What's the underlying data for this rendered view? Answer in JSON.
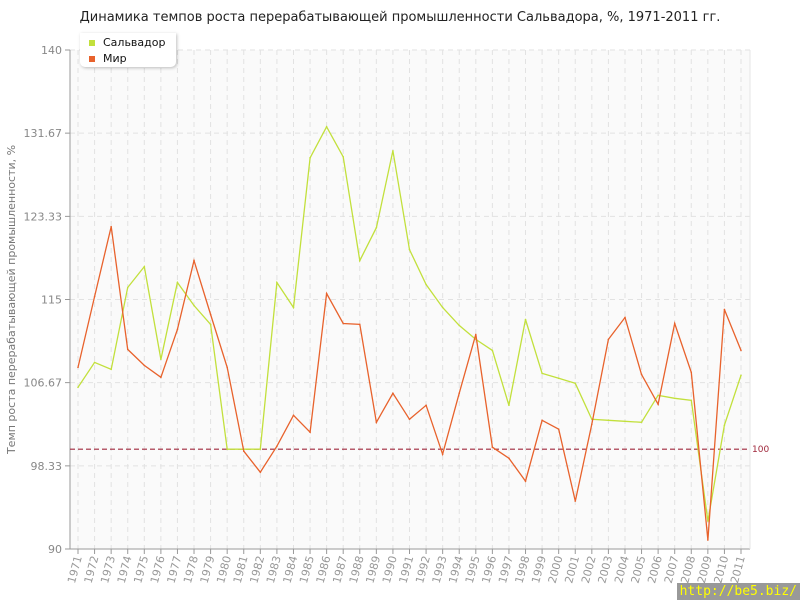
{
  "chart_data": {
    "type": "line",
    "title": "Динамика темпов роста перерабатывающей промышленности Сальвадора, %, 1971-2011 гг.",
    "xlabel": "",
    "ylabel": "Темп роста перерабатывающей промышленности, %",
    "ylim": [
      90,
      140
    ],
    "yticks": [
      "90",
      "98.33",
      "106.67",
      "115",
      "123.33",
      "131.67",
      "140"
    ],
    "grid": true,
    "legend_position": "top-left",
    "reference_line": {
      "value": 100,
      "label": "100",
      "color": "#a0283c"
    },
    "x": [
      1971,
      1972,
      1973,
      1974,
      1975,
      1976,
      1977,
      1978,
      1979,
      1980,
      1981,
      1982,
      1983,
      1984,
      1985,
      1986,
      1987,
      1988,
      1989,
      1990,
      1991,
      1992,
      1993,
      1994,
      1995,
      1996,
      1997,
      1998,
      1999,
      2000,
      2001,
      2002,
      2003,
      2004,
      2005,
      2006,
      2007,
      2008,
      2009,
      2010,
      2011
    ],
    "series": [
      {
        "name": "Сальвадор",
        "color": "#c2e03c",
        "values": [
          106.2,
          108.7,
          108.0,
          116.2,
          118.3,
          109.0,
          116.7,
          114.4,
          112.5,
          100,
          100,
          100,
          116.7,
          114.2,
          129.2,
          132.3,
          129.3,
          118.9,
          122.2,
          129.9,
          120.0,
          116.5,
          114.2,
          112.4,
          111.0,
          109.9,
          104.4,
          113.0,
          107.6,
          107.1,
          106.6,
          103.0,
          102.9,
          102.8,
          102.7,
          105.4,
          105.1,
          104.9,
          92.8,
          102.4,
          107.4
        ]
      },
      {
        "name": "Мир",
        "color": "#e8622c",
        "values": [
          108.2,
          115.3,
          122.3,
          110.0,
          108.4,
          107.2,
          112.0,
          118.9,
          113.5,
          108.2,
          99.8,
          97.7,
          100.3,
          103.4,
          101.7,
          115.6,
          112.6,
          112.5,
          102.7,
          105.6,
          103.0,
          104.4,
          99.5,
          105.6,
          111.5,
          100.2,
          99.1,
          96.8,
          102.9,
          102.0,
          94.8,
          102.5,
          111.0,
          113.2,
          107.5,
          104.5,
          112.6,
          107.7,
          90.9,
          114.0,
          109.9
        ]
      }
    ]
  },
  "watermark": "http://be5.biz/"
}
